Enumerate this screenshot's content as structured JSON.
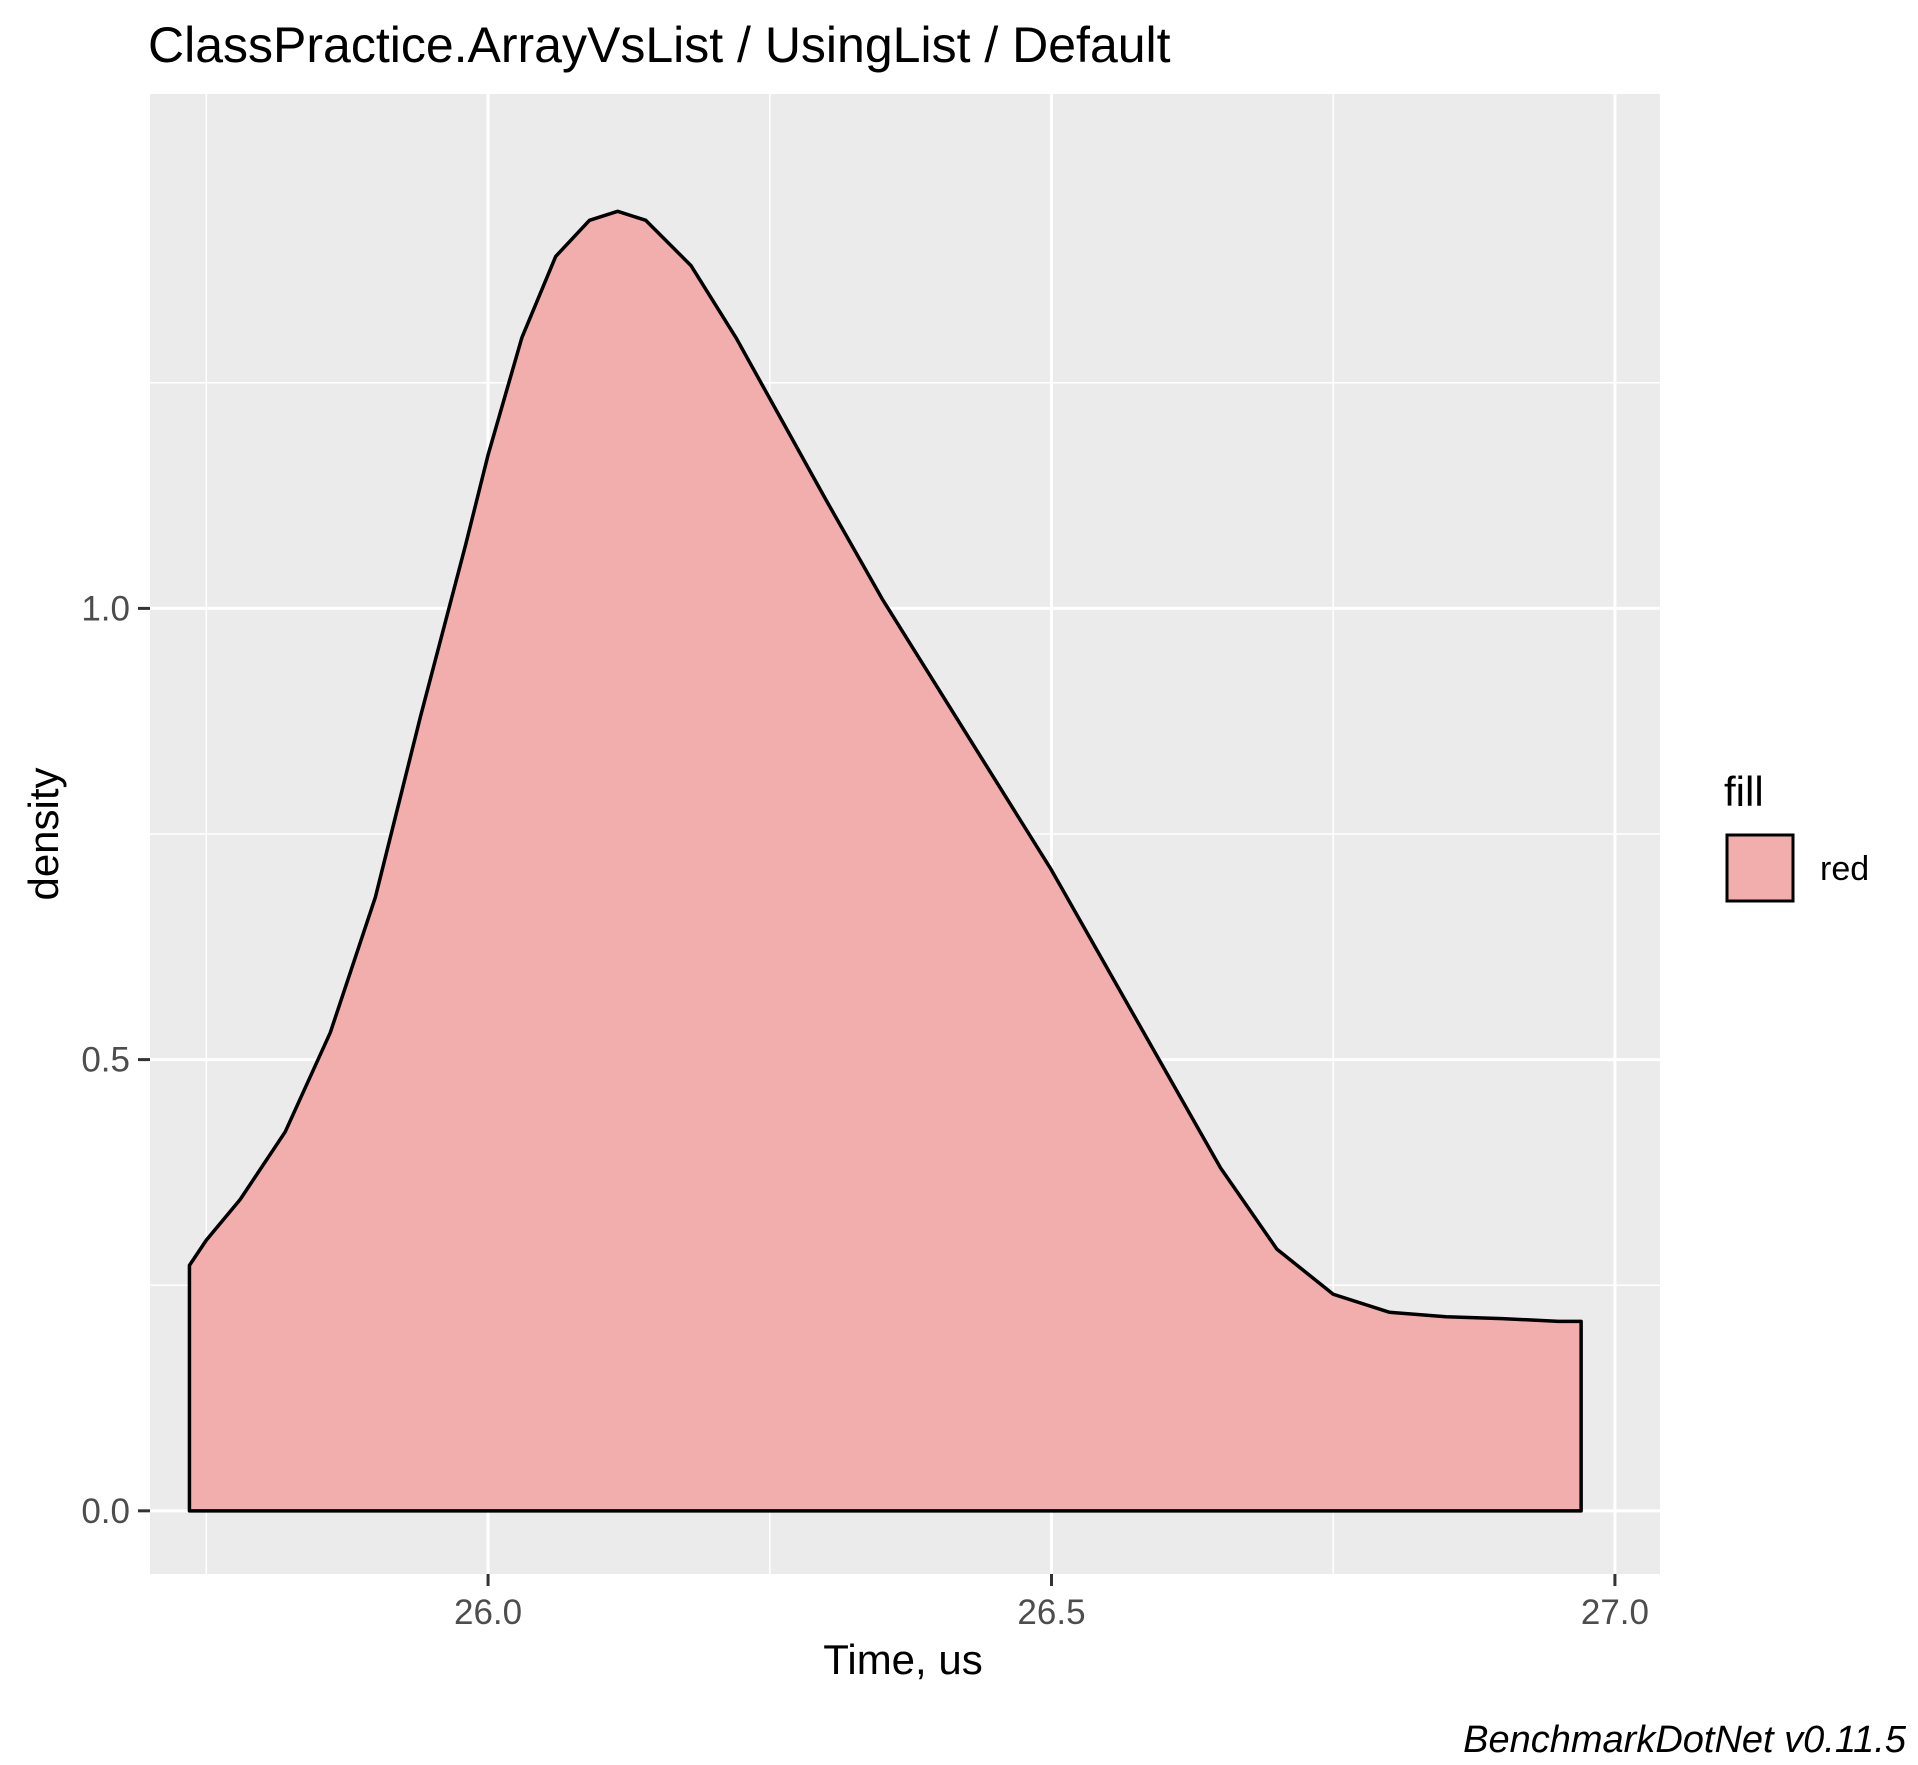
{
  "chart_data": {
    "type": "area",
    "title": "ClassPractice.ArrayVsList / UsingList / Default",
    "xlabel": "Time, us",
    "ylabel": "density",
    "caption": "BenchmarkDotNet v0.11.5",
    "x_ticks": [
      "26.0",
      "26.5",
      "27.0"
    ],
    "y_ticks": [
      "0.0",
      "0.5",
      "1.0"
    ],
    "x_tick_values": [
      26.0,
      26.5,
      27.0
    ],
    "y_tick_values": [
      0.0,
      0.5,
      1.0
    ],
    "xlim": [
      25.7,
      27.04
    ],
    "ylim": [
      -0.07,
      1.57
    ],
    "grid": true,
    "legend": {
      "title": "fill",
      "position": "right",
      "entries": [
        "red"
      ]
    },
    "series": [
      {
        "name": "red",
        "fill_color": "#f1aeac",
        "line_color": "#000000",
        "x": [
          25.735,
          25.75,
          25.78,
          25.82,
          25.86,
          25.9,
          25.94,
          25.98,
          26.0,
          26.03,
          26.06,
          26.09,
          26.115,
          26.14,
          26.18,
          26.22,
          26.26,
          26.3,
          26.35,
          26.4,
          26.45,
          26.5,
          26.55,
          26.6,
          26.65,
          26.7,
          26.75,
          26.8,
          26.85,
          26.9,
          26.95,
          26.97
        ],
        "y": [
          0.272,
          0.3,
          0.345,
          0.42,
          0.53,
          0.68,
          0.88,
          1.07,
          1.17,
          1.3,
          1.39,
          1.43,
          1.44,
          1.43,
          1.38,
          1.3,
          1.21,
          1.12,
          1.01,
          0.91,
          0.81,
          0.71,
          0.6,
          0.49,
          0.38,
          0.29,
          0.24,
          0.22,
          0.215,
          0.213,
          0.21,
          0.21
        ]
      }
    ]
  }
}
